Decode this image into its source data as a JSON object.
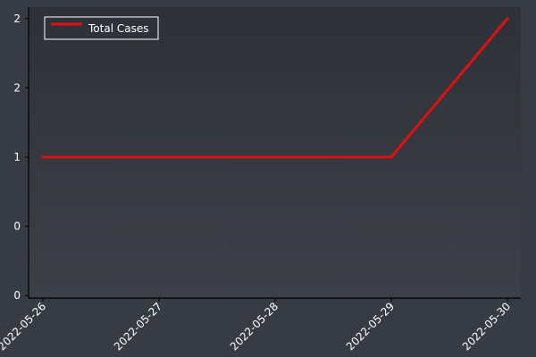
{
  "chart_data": {
    "type": "line",
    "x": [
      "2022-05-26",
      "2022-05-27",
      "2022-05-28",
      "2022-05-29",
      "2022-05-30"
    ],
    "series": [
      {
        "name": "Total Cases",
        "values": [
          1,
          1,
          1,
          1,
          2
        ],
        "color": "#e01010"
      }
    ],
    "y_ticks": [
      0,
      0.5,
      1,
      1.5,
      2
    ],
    "y_tick_labels": [
      "0",
      "0",
      "1",
      "2",
      "2"
    ],
    "ylim": [
      -0.05,
      2.05
    ],
    "grid": false,
    "legend_position": "top-left",
    "colors": {
      "page_background": "#363b44",
      "plot_background_top": "#2e3138",
      "plot_background_bottom": "#3d4048",
      "axis": "#000000",
      "text": "#ffffff",
      "legend_border": "#ffffff"
    }
  }
}
